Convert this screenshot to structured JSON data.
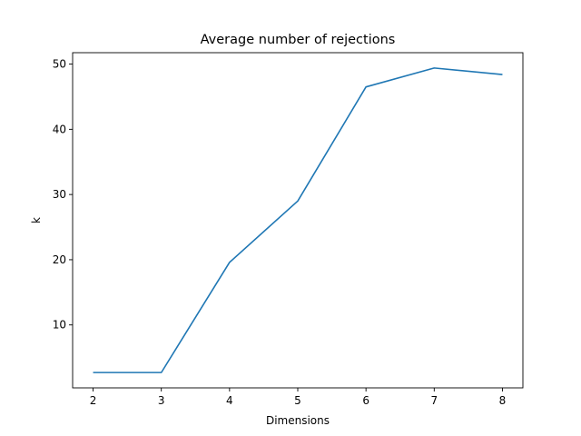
{
  "chart_data": {
    "type": "line",
    "title": "Average number of rejections",
    "xlabel": "Dimensions",
    "ylabel": "k",
    "x": [
      2,
      3,
      4,
      5,
      6,
      7,
      8
    ],
    "series": [
      {
        "values": [
          2.7,
          2.7,
          19.6,
          29.0,
          46.5,
          49.4,
          48.4
        ],
        "color": "#1f77b4"
      }
    ],
    "xticks": [
      2,
      3,
      4,
      5,
      6,
      7,
      8
    ],
    "yticks": [
      10,
      20,
      30,
      40,
      50
    ],
    "xlim": [
      1.7,
      8.3
    ],
    "ylim": [
      0.35,
      51.75
    ],
    "grid": false,
    "legend": "none"
  }
}
